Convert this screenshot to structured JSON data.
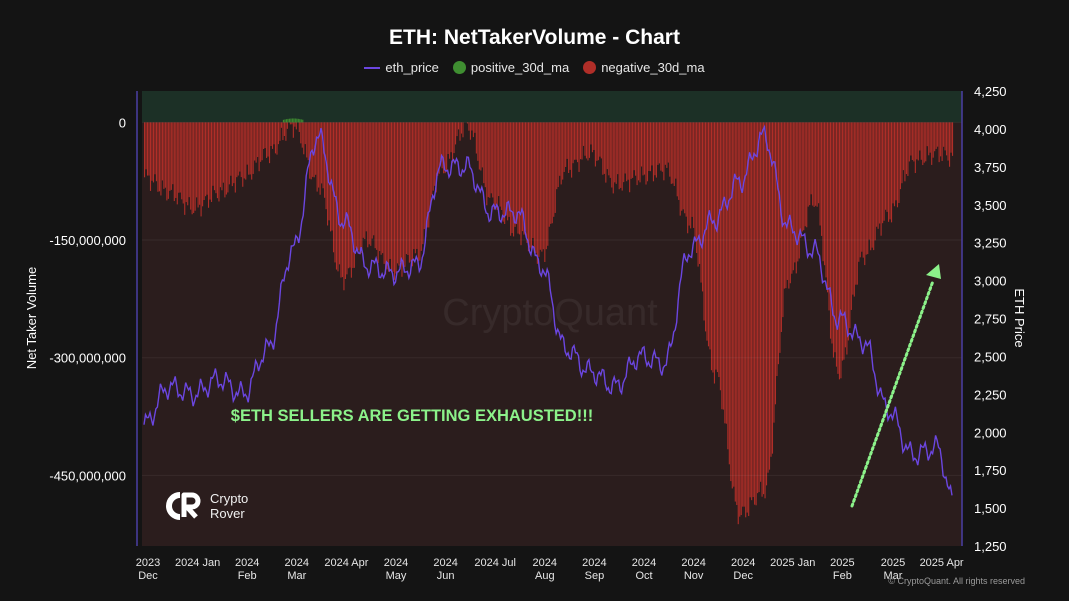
{
  "header": {
    "title": "ETH: NetTakerVolume - Chart"
  },
  "legend": {
    "items": [
      {
        "label": "eth_price",
        "color": "#6b46e0",
        "kind": "line"
      },
      {
        "label": "positive_30d_ma",
        "color": "#3f8e31",
        "kind": "dot"
      },
      {
        "label": "negative_30d_ma",
        "color": "#b02e28",
        "kind": "dot"
      }
    ]
  },
  "annotation": {
    "text": "$ETH SELLERS ARE GETTING EXHAUSTED!!!",
    "color": "#8cf28a"
  },
  "watermark": {
    "text": "CryptoQuant"
  },
  "brand": {
    "line1": "Crypto",
    "line2": "Rover"
  },
  "footer": {
    "copyright": "© CryptoQuant. All rights reserved"
  },
  "chart_data": {
    "type": "bar",
    "title": "ETH: NetTakerVolume - Chart",
    "xlabel": "",
    "ylabel_left": "Net Taker Volume",
    "ylabel_right": "ETH Price",
    "y_left_lim": [
      -540000000,
      40000000
    ],
    "y_left_ticks": [
      0,
      -150000000,
      -300000000,
      -450000000
    ],
    "y_left_tick_labels": [
      "0",
      "-150,000,000",
      "-300,000,000",
      "-450,000,000"
    ],
    "y_right_lim": [
      1250,
      4250
    ],
    "y_right_ticks": [
      1250,
      1500,
      1750,
      2000,
      2250,
      2500,
      2750,
      3000,
      3250,
      3500,
      3750,
      4000,
      4250
    ],
    "y_right_tick_labels": [
      "1,250",
      "1,500",
      "1,750",
      "2,000",
      "2,250",
      "2,500",
      "2,750",
      "3,000",
      "3,250",
      "3,500",
      "3,750",
      "4,000",
      "4,250"
    ],
    "x_tick_labels": [
      {
        "line1": "2023",
        "line2": "Dec"
      },
      {
        "line1": "2024 Jan",
        "line2": ""
      },
      {
        "line1": "2024",
        "line2": "Feb"
      },
      {
        "line1": "2024",
        "line2": "Mar"
      },
      {
        "line1": "2024 Apr",
        "line2": ""
      },
      {
        "line1": "2024",
        "line2": "May"
      },
      {
        "line1": "2024",
        "line2": "Jun"
      },
      {
        "line1": "2024 Jul",
        "line2": ""
      },
      {
        "line1": "2024",
        "line2": "Aug"
      },
      {
        "line1": "2024",
        "line2": "Sep"
      },
      {
        "line1": "2024",
        "line2": "Oct"
      },
      {
        "line1": "2024",
        "line2": "Nov"
      },
      {
        "line1": "2024",
        "line2": "Dec"
      },
      {
        "line1": "2025 Jan",
        "line2": ""
      },
      {
        "line1": "2025",
        "line2": "Feb"
      },
      {
        "line1": "2025",
        "line2": "Mar"
      },
      {
        "line1": "2025 Apr",
        "line2": ""
      }
    ],
    "x_month_index": [
      0,
      1,
      2,
      3,
      4,
      5,
      6,
      7,
      8,
      9,
      10,
      11,
      12,
      13,
      14,
      15,
      16
    ],
    "month_samples": [
      0,
      0.5,
      1,
      1.5,
      2,
      2.5,
      3,
      3.5,
      4,
      4.5,
      5,
      5.5,
      6,
      6.5,
      7,
      7.5,
      8,
      8.5,
      9,
      9.5,
      10,
      10.5,
      11,
      11.5,
      12,
      12.5,
      13,
      13.5,
      14,
      14.5,
      15,
      15.5,
      16,
      16.3
    ],
    "series": [
      {
        "name": "negative_30d_ma",
        "color": "#b02e28",
        "values": [
          -70000000,
          -90000000,
          -110000000,
          -90000000,
          -70000000,
          -40000000,
          -5000000,
          -80000000,
          -200000000,
          -150000000,
          -190000000,
          -170000000,
          -60000000,
          -5000000,
          -100000000,
          -140000000,
          -170000000,
          -60000000,
          -40000000,
          -80000000,
          -70000000,
          -60000000,
          -130000000,
          -320000000,
          -500000000,
          -470000000,
          -200000000,
          -100000000,
          -320000000,
          -170000000,
          -120000000,
          -50000000,
          -40000000,
          -45000000
        ]
      },
      {
        "name": "positive_30d_ma",
        "color": "#3f8e31",
        "values": [
          0,
          0,
          0,
          0,
          0,
          0,
          5000000,
          0,
          0,
          0,
          0,
          0,
          0,
          0,
          0,
          0,
          0,
          0,
          0,
          0,
          0,
          0,
          0,
          0,
          0,
          0,
          0,
          0,
          0,
          0,
          0,
          0,
          0,
          0
        ]
      },
      {
        "name": "eth_price",
        "color": "#6b46e0",
        "axis": "right",
        "values": [
          2050,
          2300,
          2250,
          2350,
          2250,
          2550,
          3200,
          3950,
          3400,
          3100,
          3050,
          3100,
          3750,
          3750,
          3450,
          3450,
          3100,
          2550,
          2400,
          2300,
          2500,
          2450,
          3200,
          3400,
          3650,
          3950,
          3350,
          3200,
          2750,
          2600,
          2150,
          1850,
          1900,
          1550
        ]
      }
    ],
    "overlay_arrow": {
      "from": [
        14.1,
        1700000000
      ],
      "to": [
        15.9,
        2700
      ],
      "color": "#8cf28a"
    }
  }
}
